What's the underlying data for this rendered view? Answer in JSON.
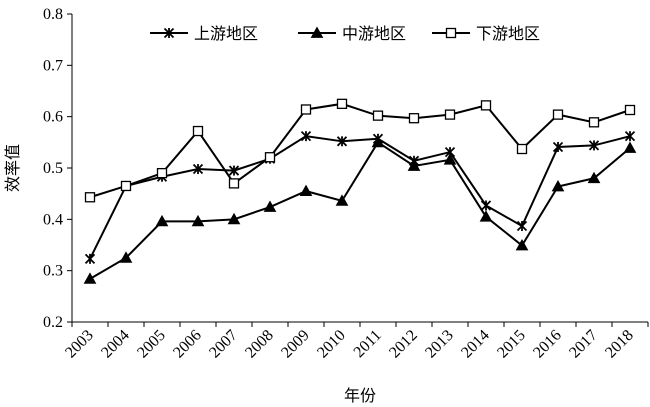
{
  "chart_data": {
    "type": "line",
    "x": [
      "2003",
      "2004",
      "2005",
      "2006",
      "2007",
      "2008",
      "2009",
      "2010",
      "2011",
      "2012",
      "2013",
      "2014",
      "2015",
      "2016",
      "2017",
      "2018"
    ],
    "xlabel": "年份",
    "ylabel": "效率值",
    "ylim": [
      0.2,
      0.8
    ],
    "yticks": [
      "0.2",
      "0.3",
      "0.4",
      "0.5",
      "0.6",
      "0.7",
      "0.8"
    ],
    "grid": false,
    "legend_position": "top",
    "series": [
      {
        "name": "上游地区",
        "marker": "star",
        "values": [
          0.323,
          0.465,
          0.483,
          0.498,
          0.495,
          0.518,
          0.562,
          0.552,
          0.557,
          0.514,
          0.531,
          0.427,
          0.387,
          0.541,
          0.544,
          0.562
        ]
      },
      {
        "name": "中游地区",
        "marker": "triangle",
        "values": [
          0.284,
          0.325,
          0.396,
          0.396,
          0.4,
          0.424,
          0.455,
          0.436,
          0.55,
          0.504,
          0.516,
          0.405,
          0.349,
          0.464,
          0.48,
          0.539
        ]
      },
      {
        "name": "下游地区",
        "marker": "square",
        "values": [
          0.443,
          0.465,
          0.49,
          0.572,
          0.47,
          0.521,
          0.614,
          0.625,
          0.602,
          0.597,
          0.604,
          0.622,
          0.537,
          0.604,
          0.589,
          0.613
        ]
      }
    ],
    "line_color": "#000000"
  }
}
